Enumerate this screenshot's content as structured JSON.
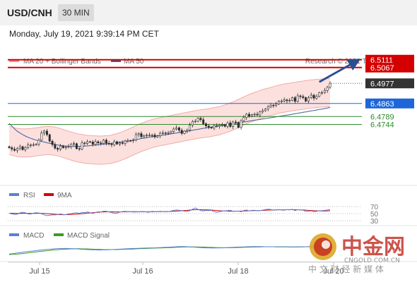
{
  "header": {
    "symbol": "USD/CNH",
    "interval": "30 MIN",
    "datetime": "Monday, July 19, 2021 9:39:14 PM CET"
  },
  "watermark": {
    "brand_cn": "中金网",
    "url": "CNGOLD.COM.CN",
    "sub_cn": "中 文 财 经 新 媒 体"
  },
  "chart_data": [
    {
      "type": "candlestick",
      "legend": [
        {
          "label": "MA 20 + Bollinger Bands",
          "color": "#f08c8c"
        },
        {
          "label": "MA 50",
          "color": "#3d5f99"
        }
      ],
      "source": "Research © 2021 Trading Central",
      "x_ticks": [
        "Jul 15",
        "Jul 16",
        "Jul 18",
        "Jul 20"
      ],
      "ylim": [
        6.443,
        6.517
      ],
      "levels": [
        {
          "value": 6.5111,
          "label": "6.5111",
          "kind": "resistance",
          "color": "#d40000"
        },
        {
          "value": 6.5067,
          "label": "6.5067",
          "kind": "resistance",
          "color": "#d40000"
        },
        {
          "value": 6.4977,
          "label": "6.4977",
          "kind": "last",
          "color": "#333333"
        },
        {
          "value": 6.4863,
          "label": "6.4863",
          "kind": "pivot",
          "color": "#1e66d8"
        },
        {
          "value": 6.4789,
          "label": "6.4789",
          "kind": "support",
          "color": "#2e8b2e"
        },
        {
          "value": 6.4744,
          "label": "6.4744",
          "kind": "support",
          "color": "#2e8b2e"
        }
      ],
      "close": [
        6.4612,
        6.4604,
        6.4597,
        6.4607,
        6.4618,
        6.4601,
        6.4612,
        6.4627,
        6.4628,
        6.4629,
        6.4632,
        6.4655,
        6.4695,
        6.4706,
        6.4686,
        6.4649,
        6.463,
        6.4609,
        6.4603,
        6.4622,
        6.4612,
        6.4615,
        6.4619,
        6.4631,
        6.4635,
        6.4607,
        6.4605,
        6.4639,
        6.4636,
        6.4646,
        6.4645,
        6.4631,
        6.4646,
        6.4639,
        6.4635,
        6.4655,
        6.4637,
        6.4633,
        6.4629,
        6.4646,
        6.4633,
        6.4639,
        6.4636,
        6.465,
        6.4652,
        6.4651,
        6.4655,
        6.4686,
        6.4692,
        6.4674,
        6.4681,
        6.4683,
        6.4683,
        6.4684,
        6.4673,
        6.4679,
        6.4694,
        6.4696,
        6.4694,
        6.4696,
        6.4704,
        6.4718,
        6.4725,
        6.4711,
        6.4693,
        6.4706,
        6.4711,
        6.4741,
        6.4761,
        6.4762,
        6.4779,
        6.4771,
        6.4748,
        6.4735,
        6.4727,
        6.4724,
        6.4737,
        6.4734,
        6.474,
        6.4742,
        6.4733,
        6.4753,
        6.4732,
        6.4758,
        6.4755,
        6.4727,
        6.4765,
        6.4783,
        6.4802,
        6.4791,
        6.4799,
        6.4802,
        6.4798,
        6.4815,
        6.4822,
        6.4831,
        6.4844,
        6.4853,
        6.4852,
        6.486,
        6.4876,
        6.4877,
        6.4883,
        6.4878,
        6.4881,
        6.4896,
        6.4875,
        6.4906,
        6.4902,
        6.4896,
        6.4876,
        6.4896,
        6.491,
        6.4893,
        6.4903,
        6.4924,
        6.4925,
        6.4937,
        6.4955,
        6.4977
      ],
      "ma50": [
        6.475,
        6.4735,
        6.4719,
        6.4705,
        6.4695,
        6.4686,
        6.4678,
        6.4671,
        6.4665,
        6.466,
        6.4655,
        6.4651,
        6.4648,
        6.4644,
        6.464,
        6.4637,
        6.4634,
        6.463,
        6.4627,
        6.4625,
        6.4623,
        6.4621,
        6.462,
        6.4619,
        6.4619,
        6.462,
        6.462,
        6.4621,
        6.4621,
        6.4622,
        6.4624,
        6.4625,
        6.4627,
        6.4628,
        6.463,
        6.4632,
        6.4633,
        6.4635,
        6.4637,
        6.4639,
        6.464,
        6.4642,
        6.4645,
        6.4647,
        6.465,
        6.4652,
        6.4655,
        6.4658,
        6.4661,
        6.4664,
        6.4666,
        6.4669,
        6.4672,
        6.4675,
        6.4677,
        6.4679,
        6.4681,
        6.4683,
        6.4686,
        6.4688,
        6.469,
        6.4693,
        6.4695,
        6.4698,
        6.47,
        6.4703,
        6.4705,
        6.4708,
        6.4711,
        6.4714,
        6.4716,
        6.4719,
        6.4722,
        6.4724,
        6.4727,
        6.4729,
        6.4731,
        6.4734,
        6.4736,
        6.4738,
        6.4741,
        6.4743,
        6.4745,
        6.4748,
        6.475,
        6.4753,
        6.4755,
        6.4758,
        6.476,
        6.4763,
        6.4765,
        6.4768,
        6.477,
        6.4772,
        6.4775,
        6.4777,
        6.478,
        6.4782,
        6.4785,
        6.4787,
        6.479,
        6.4792,
        6.4795,
        6.4797,
        6.4799,
        6.4802,
        6.4805,
        6.4807,
        6.481,
        6.4813,
        6.4815,
        6.4818,
        6.4821,
        6.4823,
        6.4826,
        6.4829,
        6.4831,
        6.4834,
        6.4837,
        6.484
      ],
      "bb_upper": [
        6.4733,
        6.4729,
        6.4725,
        6.4722,
        6.472,
        6.4719,
        6.4719,
        6.472,
        6.4721,
        6.4723,
        6.4725,
        6.4727,
        6.473,
        6.4731,
        6.4732,
        6.4732,
        6.4731,
        6.4729,
        6.4725,
        6.4721,
        6.4716,
        6.4711,
        6.4706,
        6.4701,
        6.4696,
        6.4693,
        6.4689,
        6.4687,
        6.4684,
        6.4682,
        6.4681,
        6.468,
        6.4679,
        6.4678,
        6.4678,
        6.4679,
        6.468,
        6.4681,
        6.4684,
        6.4688,
        6.4692,
        6.4697,
        6.4703,
        6.4709,
        6.4716,
        6.4723,
        6.473,
        6.4737,
        6.4744,
        6.475,
        6.4756,
        6.4762,
        6.4767,
        6.4772,
        6.4776,
        6.4779,
        6.4783,
        6.4786,
        6.4789,
        6.4792,
        6.4795,
        6.4798,
        6.4801,
        6.4804,
        6.4807,
        6.481,
        6.4813,
        6.4816,
        6.4819,
        6.4822,
        6.4825,
        6.4827,
        6.4829,
        6.4831,
        6.4833,
        6.4836,
        6.4839,
        6.4842,
        6.4845,
        6.485,
        6.4855,
        6.486,
        6.4866,
        6.4872,
        6.4879,
        6.4886,
        6.4893,
        6.49,
        6.4907,
        6.4914,
        6.492,
        6.4926,
        6.4931,
        6.4937,
        6.4942,
        6.4946,
        6.495,
        6.4955,
        6.4959,
        6.4963,
        6.4967,
        6.497,
        6.4973,
        6.4976,
        6.4978,
        6.4981,
        6.4983,
        6.4986,
        6.4988,
        6.499,
        6.4993,
        6.4995,
        6.4997,
        6.4998,
        6.5,
        6.5001,
        6.5002,
        6.5003,
        6.5004,
        6.5004
      ],
      "bb_lower": [
        6.4573,
        6.4569,
        6.4565,
        6.4562,
        6.456,
        6.4559,
        6.4559,
        6.456,
        6.4561,
        6.4563,
        6.4565,
        6.4567,
        6.457,
        6.4571,
        6.4572,
        6.4572,
        6.4571,
        6.4569,
        6.4565,
        6.4561,
        6.4556,
        6.4551,
        6.4546,
        6.4541,
        6.4536,
        6.4533,
        6.4529,
        6.4527,
        6.4524,
        6.4522,
        6.4521,
        6.452,
        6.4519,
        6.4518,
        6.4518,
        6.4519,
        6.452,
        6.4521,
        6.4524,
        6.4528,
        6.4532,
        6.4537,
        6.4543,
        6.4549,
        6.4556,
        6.4563,
        6.457,
        6.4577,
        6.4584,
        6.459,
        6.4596,
        6.4602,
        6.4607,
        6.4612,
        6.4616,
        6.4619,
        6.4623,
        6.4626,
        6.4629,
        6.4632,
        6.4635,
        6.4638,
        6.4641,
        6.4644,
        6.4647,
        6.465,
        6.4653,
        6.4656,
        6.4659,
        6.4662,
        6.4665,
        6.4667,
        6.4669,
        6.4671,
        6.4673,
        6.4676,
        6.4679,
        6.4682,
        6.4685,
        6.469,
        6.4695,
        6.47,
        6.4706,
        6.4712,
        6.4719,
        6.4726,
        6.4733,
        6.474,
        6.4747,
        6.4754,
        6.476,
        6.4766,
        6.4771,
        6.4777,
        6.4782,
        6.4786,
        6.479,
        6.4795,
        6.4799,
        6.4803,
        6.4807,
        6.481,
        6.4813,
        6.4816,
        6.4818,
        6.4821,
        6.4823,
        6.4826,
        6.4828,
        6.483,
        6.4833,
        6.4835,
        6.4837,
        6.4838,
        6.484,
        6.4841,
        6.4842,
        6.4843,
        6.4844,
        6.4844
      ],
      "arrow": {
        "from_index": 115,
        "from_value": 6.4985,
        "to_index": 129,
        "to_value": 6.5105
      }
    },
    {
      "type": "line",
      "legend": [
        {
          "label": "RSI",
          "color": "#5b7fd6"
        },
        {
          "label": "9MA",
          "color": "#d40000"
        }
      ],
      "ylim": [
        20,
        80
      ],
      "y_ticks": [
        70,
        50,
        30
      ],
      "rsi": [
        51.4,
        49.1,
        47.6,
        48.3,
        52.2,
        53.8,
        52.5,
        49.1,
        48.8,
        51.3,
        52.6,
        51.9,
        49.6,
        46.5,
        44.3,
        45.2,
        46.1,
        46.3,
        47.5,
        48.9,
        47.3,
        46.8,
        49.2,
        50.1,
        51.5,
        52.3,
        50.7,
        53.1,
        52.9,
        54.7,
        52.8,
        50.3,
        53.2,
        55.1,
        54.9,
        56.8,
        56.9,
        54.9,
        53.2,
        50.8,
        51.3,
        54.5,
        55.7,
        56.6,
        55.4,
        55.8,
        54.5,
        54.9,
        54.9,
        55.8,
        55.7,
        54.6,
        54.3,
        56.4,
        55.4,
        55.3,
        56.7,
        55.8,
        55.5,
        55.5,
        57.2,
        59.2,
        60.3,
        59.5,
        58.8,
        56.8,
        56.2,
        58.1,
        62.5,
        66.2,
        62.1,
        58.6,
        57.6,
        59.3,
        58.5,
        59.2,
        55.9,
        53.7,
        55.3,
        57.3,
        57.8,
        58.5,
        59.4,
        56.6,
        56.9,
        57.4,
        55.5,
        58.8,
        60.1,
        57.8,
        59.1,
        59.4,
        58.2,
        58.8,
        59.8,
        61.5,
        62.6,
        61.8,
        59.9,
        60.8,
        61.4,
        60.3,
        59.9,
        61.2,
        60.6,
        62.3,
        58.7,
        61.1,
        60.4,
        59.8,
        56.6,
        56.9,
        57.7,
        55.8,
        56.6,
        58.4,
        58.3,
        59.3,
        60.3,
        61.4
      ],
      "ma9": [
        51.3,
        51.0,
        50.8,
        50.6,
        50.6,
        50.7,
        50.8,
        50.8,
        50.6,
        50.6,
        50.8,
        50.9,
        50.7,
        50.4,
        50.0,
        49.4,
        48.7,
        48.1,
        47.5,
        47.0,
        46.9,
        47.0,
        47.2,
        47.6,
        48.1,
        48.6,
        49.1,
        49.8,
        50.6,
        51.5,
        52.2,
        52.6,
        53.2,
        53.9,
        54.4,
        54.9,
        55.1,
        55.3,
        55.2,
        54.9,
        54.7,
        54.8,
        55.0,
        55.1,
        55.2,
        55.4,
        55.4,
        55.4,
        55.3,
        55.4,
        55.3,
        55.2,
        55.1,
        55.2,
        55.4,
        55.5,
        55.7,
        55.8,
        55.9,
        56.0,
        56.3,
        56.7,
        57.2,
        57.8,
        58.3,
        58.8,
        59.3,
        60.0,
        60.8,
        61.2,
        61.2,
        61.0,
        60.9,
        60.7,
        60.4,
        60.0,
        59.4,
        58.8,
        58.3,
        57.9,
        57.6,
        57.2,
        56.9,
        56.8,
        56.9,
        57.0,
        57.1,
        57.5,
        57.8,
        58.0,
        58.2,
        58.4,
        58.5,
        58.7,
        59.0,
        59.5,
        60.0,
        60.3,
        60.4,
        60.6,
        60.7,
        60.7,
        60.9,
        61.1,
        61.1,
        61.2,
        61.0,
        60.8,
        60.6,
        60.4,
        59.8,
        59.2,
        58.8,
        58.3,
        58.0,
        57.7,
        57.5,
        57.5,
        57.7,
        58.1
      ]
    },
    {
      "type": "line",
      "legend": [
        {
          "label": "MACD",
          "color": "#5b7fd6"
        },
        {
          "label": "MACD Signal",
          "color": "#3f9b1f"
        }
      ],
      "ylim": [
        -0.006,
        0.006
      ],
      "macd": [
        -0.0021,
        -0.002,
        -0.0017,
        -0.0014,
        -0.0011,
        -0.0009,
        -0.0006,
        -0.0004,
        -0.0002,
        0.0,
        0.0003,
        0.0005,
        0.0007,
        0.0009,
        0.0011,
        0.0012,
        0.0014,
        0.0016,
        0.0017,
        0.0017,
        0.0018,
        0.0018,
        0.0017,
        0.0017,
        0.0016,
        0.0015,
        0.0014,
        0.0012,
        0.0011,
        0.001,
        0.0009,
        0.0008,
        0.0008,
        0.0007,
        0.0007,
        0.0008,
        0.0008,
        0.0009,
        0.001,
        0.0011,
        0.0012,
        0.0013,
        0.0014,
        0.0015,
        0.0016,
        0.0017,
        0.0018,
        0.0018,
        0.0019,
        0.002,
        0.002,
        0.0021,
        0.0021,
        0.0022,
        0.0022,
        0.0023,
        0.0024,
        0.0025,
        0.0026,
        0.0027,
        0.0028,
        0.0029,
        0.003,
        0.0031,
        0.0031,
        0.0031,
        0.003,
        0.0029,
        0.0028,
        0.0027,
        0.0025,
        0.0024,
        0.0023,
        0.0022,
        0.0022,
        0.0021,
        0.0021,
        0.0022,
        0.0022,
        0.0022,
        0.0023,
        0.0024,
        0.0025,
        0.0026,
        0.0027,
        0.0028,
        0.0028,
        0.0029,
        0.003,
        0.003,
        0.0031,
        0.0031,
        0.0031,
        0.0031,
        0.0031,
        0.003,
        0.003,
        0.003,
        0.003,
        0.0029,
        0.0029,
        0.0029,
        0.0029,
        0.0029,
        0.0029,
        0.0029,
        0.0029,
        0.0029,
        0.003,
        0.003,
        0.003,
        0.0031,
        0.0031,
        0.0031,
        0.0032,
        0.0032,
        0.0032,
        0.0032,
        0.0032,
        0.0033
      ],
      "signal": [
        -0.0026,
        -0.0024,
        -0.0023,
        -0.0022,
        -0.002,
        -0.0018,
        -0.0016,
        -0.0013,
        -0.0011,
        -0.0009,
        -0.0007,
        -0.0004,
        -0.0002,
        0.0,
        0.0002,
        0.0004,
        0.0006,
        0.0008,
        0.0009,
        0.0011,
        0.0012,
        0.0013,
        0.0014,
        0.0015,
        0.0015,
        0.0016,
        0.0016,
        0.0015,
        0.0015,
        0.0015,
        0.0014,
        0.0013,
        0.0012,
        0.0012,
        0.0011,
        0.001,
        0.001,
        0.001,
        0.001,
        0.001,
        0.001,
        0.0011,
        0.0011,
        0.0012,
        0.0013,
        0.0013,
        0.0014,
        0.0015,
        0.0016,
        0.0017,
        0.0017,
        0.0018,
        0.0019,
        0.002,
        0.002,
        0.0021,
        0.0021,
        0.0022,
        0.0023,
        0.0024,
        0.0024,
        0.0025,
        0.0026,
        0.0027,
        0.0028,
        0.0028,
        0.0029,
        0.0029,
        0.0029,
        0.0029,
        0.0029,
        0.0028,
        0.0028,
        0.0027,
        0.0026,
        0.0026,
        0.0025,
        0.0024,
        0.0024,
        0.0023,
        0.0023,
        0.0023,
        0.0023,
        0.0024,
        0.0024,
        0.0025,
        0.0025,
        0.0026,
        0.0027,
        0.0027,
        0.0028,
        0.0028,
        0.0029,
        0.0029,
        0.003,
        0.003,
        0.003,
        0.003,
        0.003,
        0.003,
        0.003,
        0.003,
        0.003,
        0.003,
        0.0029,
        0.0029,
        0.0029,
        0.0029,
        0.0029,
        0.0029,
        0.003,
        0.003,
        0.003,
        0.003,
        0.003,
        0.0031,
        0.0031,
        0.0031,
        0.0031,
        0.0032
      ]
    }
  ]
}
